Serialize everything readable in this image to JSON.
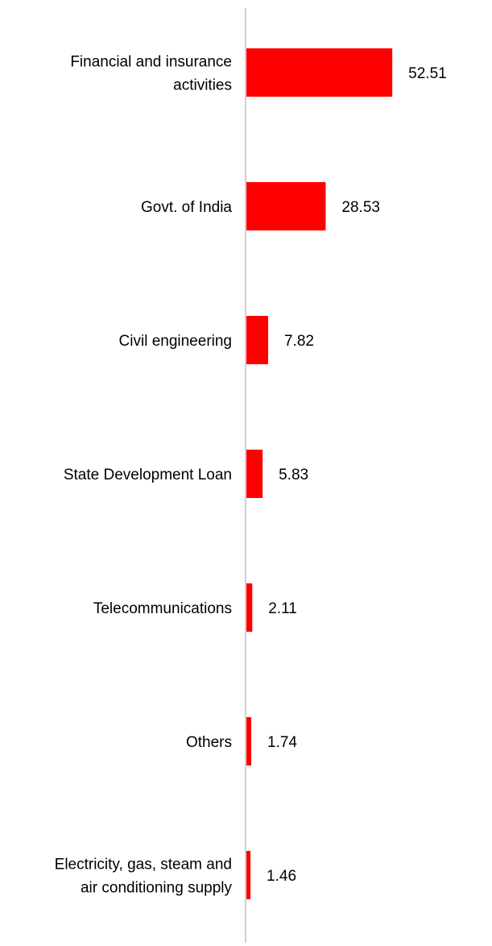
{
  "chart_data": {
    "type": "bar",
    "orientation": "horizontal",
    "categories": [
      "Financial and insurance activities",
      "Govt. of India",
      "Civil engineering",
      "State Development Loan",
      "Telecommunications",
      "Others",
      "Electricity, gas, steam and air conditioning supply"
    ],
    "category_lines": [
      [
        "Financial and insurance",
        "activities"
      ],
      [
        "Govt. of India"
      ],
      [
        "Civil engineering"
      ],
      [
        "State Development Loan"
      ],
      [
        "Telecommunications"
      ],
      [
        "Others"
      ],
      [
        "Electricity, gas, steam and",
        "air conditioning supply"
      ]
    ],
    "values": [
      52.51,
      28.53,
      7.82,
      5.83,
      2.11,
      1.74,
      1.46
    ],
    "value_labels": [
      "52.51",
      "28.53",
      "7.82",
      "5.83",
      "2.11",
      "1.74",
      "1.46"
    ],
    "xlim": [
      0,
      100
    ],
    "grid": false,
    "legend": "none",
    "bar_color": "#ff0000",
    "axis_color": "#d0d0d0"
  }
}
